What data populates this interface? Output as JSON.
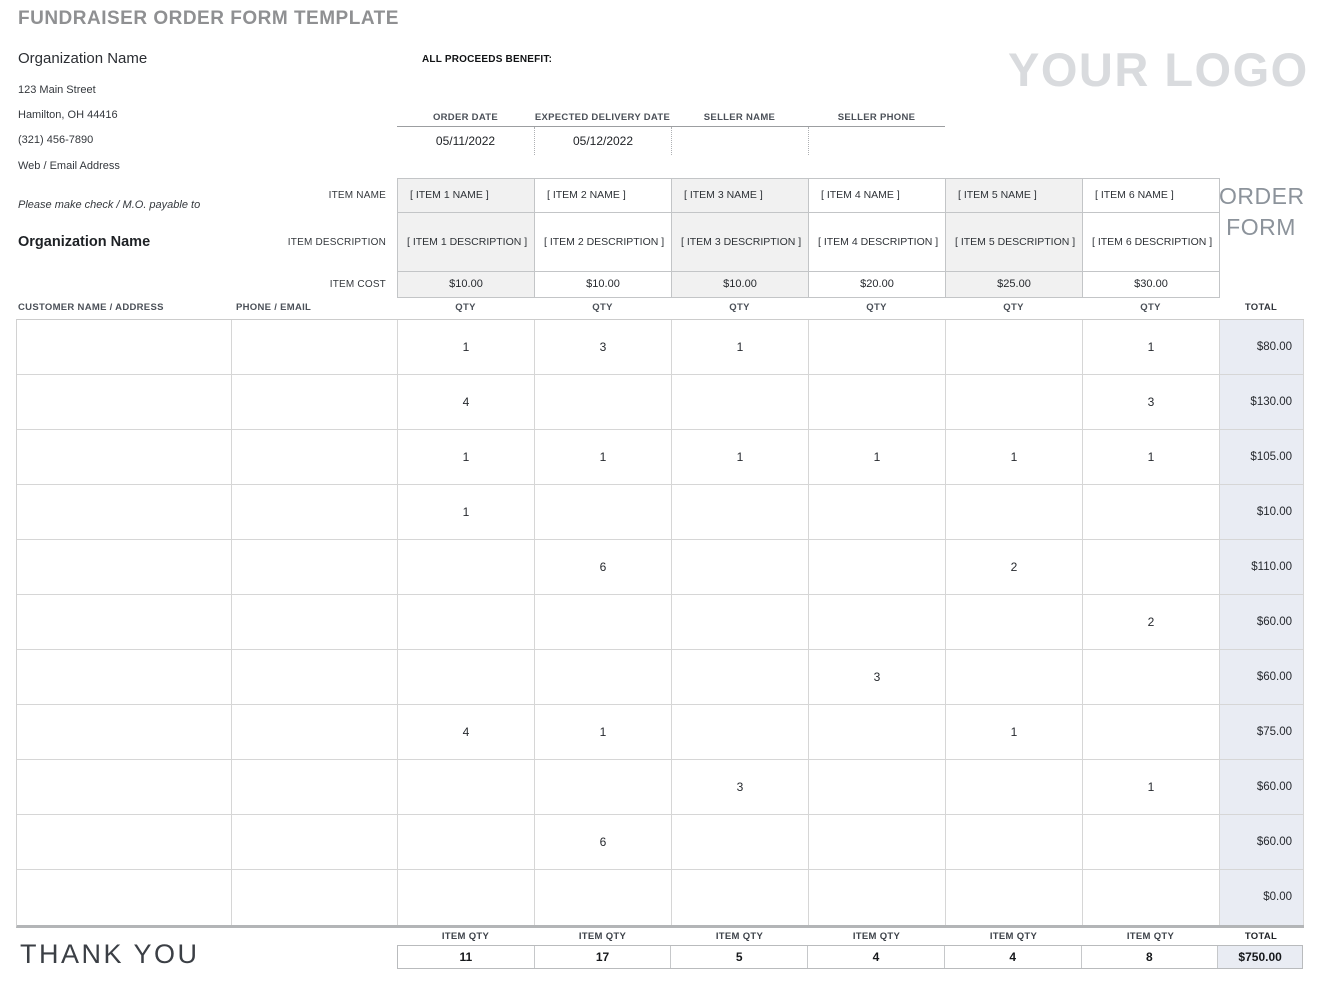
{
  "page_title": "FUNDRAISER ORDER FORM TEMPLATE",
  "org": {
    "name": "Organization Name",
    "street": "123 Main Street",
    "city": "Hamilton, OH 44416",
    "phone": "(321) 456-7890",
    "web": "Web / Email Address"
  },
  "proceeds_label": "ALL PROCEEDS BENEFIT:",
  "logo_text": "YOUR LOGO",
  "order_info": {
    "fields": [
      {
        "label": "ORDER DATE",
        "value": "05/11/2022"
      },
      {
        "label": "EXPECTED DELIVERY DATE",
        "value": "05/12/2022"
      },
      {
        "label": "SELLER NAME",
        "value": ""
      },
      {
        "label": "SELLER PHONE",
        "value": ""
      }
    ]
  },
  "order_form_label": {
    "line1": "ORDER",
    "line2": "FORM"
  },
  "payable": {
    "note": "Please make check / M.O. payable to",
    "payee": "Organization Name"
  },
  "items": {
    "row_labels": {
      "name": "ITEM NAME",
      "description": "ITEM DESCRIPTION",
      "cost": "ITEM COST"
    },
    "columns": [
      {
        "name": "[ ITEM 1 NAME ]",
        "description": "[ ITEM 1 DESCRIPTION ]",
        "cost": "$10.00"
      },
      {
        "name": "[ ITEM 2 NAME ]",
        "description": "[ ITEM 2 DESCRIPTION ]",
        "cost": "$10.00"
      },
      {
        "name": "[ ITEM 3 NAME ]",
        "description": "[ ITEM 3 DESCRIPTION ]",
        "cost": "$10.00"
      },
      {
        "name": "[ ITEM 4 NAME ]",
        "description": "[ ITEM 4 DESCRIPTION ]",
        "cost": "$20.00"
      },
      {
        "name": "[ ITEM 5 NAME ]",
        "description": "[ ITEM 5 DESCRIPTION ]",
        "cost": "$25.00"
      },
      {
        "name": "[ ITEM 6 NAME ]",
        "description": "[ ITEM 6 DESCRIPTION ]",
        "cost": "$30.00"
      }
    ]
  },
  "table": {
    "headers": {
      "customer": "CUSTOMER NAME / ADDRESS",
      "phone": "PHONE / EMAIL",
      "qty": "QTY",
      "total": "TOTAL"
    },
    "rows": [
      {
        "customer": "",
        "phone": "",
        "qtys": [
          "1",
          "3",
          "1",
          "",
          "",
          "1"
        ],
        "total": "$80.00"
      },
      {
        "customer": "",
        "phone": "",
        "qtys": [
          "4",
          "",
          "",
          "",
          "",
          "3"
        ],
        "total": "$130.00"
      },
      {
        "customer": "",
        "phone": "",
        "qtys": [
          "1",
          "1",
          "1",
          "1",
          "1",
          "1"
        ],
        "total": "$105.00"
      },
      {
        "customer": "",
        "phone": "",
        "qtys": [
          "1",
          "",
          "",
          "",
          "",
          ""
        ],
        "total": "$10.00"
      },
      {
        "customer": "",
        "phone": "",
        "qtys": [
          "",
          "6",
          "",
          "",
          "2",
          ""
        ],
        "total": "$110.00"
      },
      {
        "customer": "",
        "phone": "",
        "qtys": [
          "",
          "",
          "",
          "",
          "",
          "2"
        ],
        "total": "$60.00"
      },
      {
        "customer": "",
        "phone": "",
        "qtys": [
          "",
          "",
          "",
          "3",
          "",
          ""
        ],
        "total": "$60.00"
      },
      {
        "customer": "",
        "phone": "",
        "qtys": [
          "4",
          "1",
          "",
          "",
          "1",
          ""
        ],
        "total": "$75.00"
      },
      {
        "customer": "",
        "phone": "",
        "qtys": [
          "",
          "",
          "3",
          "",
          "",
          "1"
        ],
        "total": "$60.00"
      },
      {
        "customer": "",
        "phone": "",
        "qtys": [
          "",
          "6",
          "",
          "",
          "",
          ""
        ],
        "total": "$60.00"
      },
      {
        "customer": "",
        "phone": "",
        "qtys": [
          "",
          "",
          "",
          "",
          "",
          ""
        ],
        "total": "$0.00"
      }
    ],
    "footer": {
      "qty_label": "ITEM QTY",
      "total_label": "TOTAL",
      "qtys": [
        "11",
        "17",
        "5",
        "4",
        "4",
        "8"
      ],
      "total": "$750.00"
    }
  },
  "thank_you": "THANK YOU",
  "colors": {
    "title_gray": "#8f9092",
    "logo_gray": "#d9dbde",
    "order_form_gray": "#8c939b",
    "shaded_cell": "#f1f1f1",
    "total_column": "#e9ecf3",
    "grid_border": "#d6d6d6",
    "thick_border": "#b3b5b7",
    "header_text": "#4b5058"
  }
}
